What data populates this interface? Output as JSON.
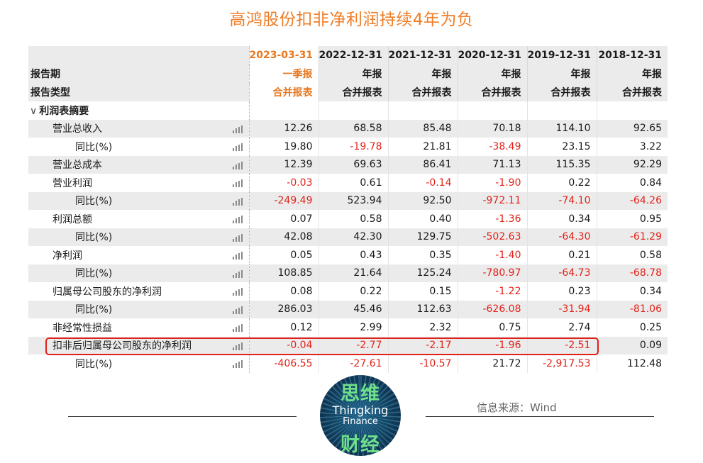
{
  "title": "高鸿股份扣非净利润持续4年为负",
  "chart_data": {
    "type": "table",
    "title": "高鸿股份扣非净利润持续4年为负",
    "header_labels": [
      "报告期",
      "报告类型"
    ],
    "columns": [
      {
        "period": "2023-03-31",
        "report": "一季报",
        "type": "合并报表",
        "highlight": true
      },
      {
        "period": "2022-12-31",
        "report": "年报",
        "type": "合并报表",
        "highlight": false
      },
      {
        "period": "2021-12-31",
        "report": "年报",
        "type": "合并报表",
        "highlight": false
      },
      {
        "period": "2020-12-31",
        "report": "年报",
        "type": "合并报表",
        "highlight": false
      },
      {
        "period": "2019-12-31",
        "report": "年报",
        "type": "合并报表",
        "highlight": false
      },
      {
        "period": "2018-12-31",
        "report": "年报",
        "type": "合并报表",
        "highlight": false
      }
    ],
    "section_label": "利润表摘要",
    "rows": [
      {
        "label": "营业总收入",
        "indent": 1,
        "values": [
          "12.26",
          "68.58",
          "85.48",
          "70.18",
          "114.10",
          "92.65"
        ]
      },
      {
        "label": "同比(%)",
        "indent": 2,
        "values": [
          "19.80",
          "-19.78",
          "21.81",
          "-38.49",
          "23.15",
          "3.22"
        ]
      },
      {
        "label": "营业总成本",
        "indent": 1,
        "values": [
          "12.39",
          "69.63",
          "86.41",
          "71.13",
          "115.35",
          "92.29"
        ]
      },
      {
        "label": "营业利润",
        "indent": 1,
        "values": [
          "-0.03",
          "0.61",
          "-0.14",
          "-1.90",
          "0.22",
          "0.84"
        ]
      },
      {
        "label": "同比(%)",
        "indent": 2,
        "values": [
          "-249.49",
          "523.94",
          "92.50",
          "-972.11",
          "-74.10",
          "-64.26"
        ]
      },
      {
        "label": "利润总额",
        "indent": 1,
        "values": [
          "0.07",
          "0.58",
          "0.40",
          "-1.36",
          "0.34",
          "0.95"
        ]
      },
      {
        "label": "同比(%)",
        "indent": 2,
        "values": [
          "42.08",
          "42.30",
          "129.75",
          "-502.63",
          "-64.30",
          "-61.29"
        ]
      },
      {
        "label": "净利润",
        "indent": 1,
        "values": [
          "0.05",
          "0.43",
          "0.35",
          "-1.40",
          "0.21",
          "0.58"
        ]
      },
      {
        "label": "同比(%)",
        "indent": 2,
        "values": [
          "108.85",
          "21.64",
          "125.24",
          "-780.97",
          "-64.73",
          "-68.78"
        ]
      },
      {
        "label": "归属母公司股东的净利润",
        "indent": 1,
        "values": [
          "0.08",
          "0.22",
          "0.15",
          "-1.22",
          "0.23",
          "0.34"
        ]
      },
      {
        "label": "同比(%)",
        "indent": 2,
        "values": [
          "286.03",
          "45.46",
          "112.63",
          "-626.08",
          "-31.94",
          "-81.06"
        ]
      },
      {
        "label": "非经常性损益",
        "indent": 1,
        "values": [
          "0.12",
          "2.99",
          "2.32",
          "0.75",
          "2.74",
          "0.25"
        ]
      },
      {
        "label": "扣非后归属母公司股东的净利润",
        "indent": 1,
        "highlighted": true,
        "values": [
          "-0.04",
          "-2.77",
          "-2.17",
          "-1.96",
          "-2.51",
          "0.09"
        ]
      },
      {
        "label": "同比(%)",
        "indent": 2,
        "values": [
          "-406.55",
          "-27.61",
          "-10.57",
          "21.72",
          "-2,917.53",
          "112.48"
        ]
      }
    ],
    "colors": {
      "title": "#ef7d26",
      "highlight_header": "#e8771d",
      "negative": "#e2231a",
      "highlight_box": "#e0201a",
      "band": "#ebebeb"
    }
  },
  "source": "信息来源：Wind",
  "logo": {
    "top": "思维",
    "line1": "Thingking",
    "line2": "Finance",
    "bottom": "财经"
  },
  "icons": {
    "row_chart": "bar-chart-icon",
    "section_toggle": "chevron-down-icon"
  }
}
